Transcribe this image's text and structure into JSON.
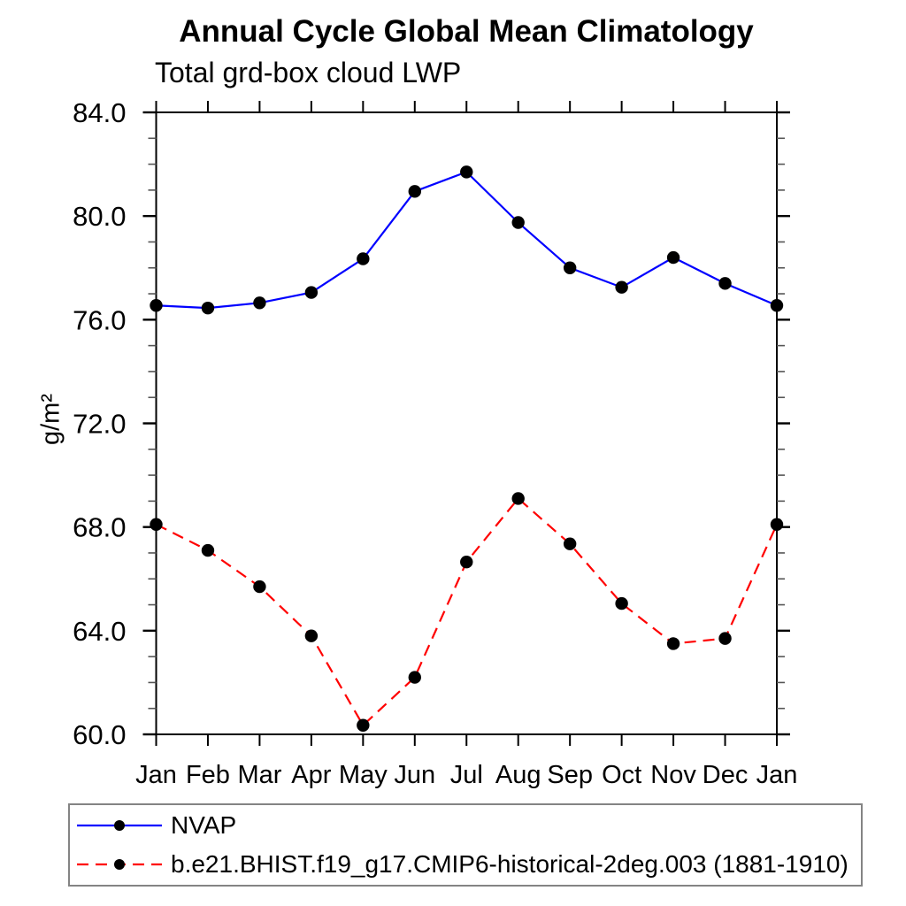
{
  "chart_data": {
    "type": "line",
    "title": "Annual Cycle Global Mean Climatology",
    "subtitle": "Total grd-box cloud LWP",
    "xlabel": "",
    "ylabel": "g/m²",
    "categories": [
      "Jan",
      "Feb",
      "Mar",
      "Apr",
      "May",
      "Jun",
      "Jul",
      "Aug",
      "Sep",
      "Oct",
      "Nov",
      "Dec",
      "Jan"
    ],
    "ylim": [
      60.0,
      84.0
    ],
    "y_major_ticks": [
      60.0,
      64.0,
      68.0,
      72.0,
      76.0,
      80.0,
      84.0
    ],
    "y_tick_labels": [
      "60.0",
      "64.0",
      "68.0",
      "72.0",
      "76.0",
      "80.0",
      "84.0"
    ],
    "y_minor_step": 1.0,
    "grid": false,
    "legend_position": "boxed, below plot, left-aligned",
    "axis_color": "#000000",
    "series": [
      {
        "name": "NVAP",
        "color": "#0000ff",
        "line_style": "solid",
        "marker": "filled-circle",
        "marker_color": "#000000",
        "values": [
          76.55,
          76.45,
          76.65,
          77.05,
          78.35,
          80.95,
          81.7,
          79.75,
          78.0,
          77.25,
          78.4,
          77.4,
          76.55
        ]
      },
      {
        "name": "b.e21.BHIST.f19_g17.CMIP6-historical-2deg.003 (1881-1910)",
        "color": "#ff0000",
        "line_style": "dashed",
        "marker": "filled-circle",
        "marker_color": "#000000",
        "values": [
          68.1,
          67.1,
          65.7,
          63.8,
          60.35,
          62.2,
          66.65,
          69.1,
          67.35,
          65.05,
          63.5,
          63.7,
          68.1
        ]
      }
    ]
  }
}
